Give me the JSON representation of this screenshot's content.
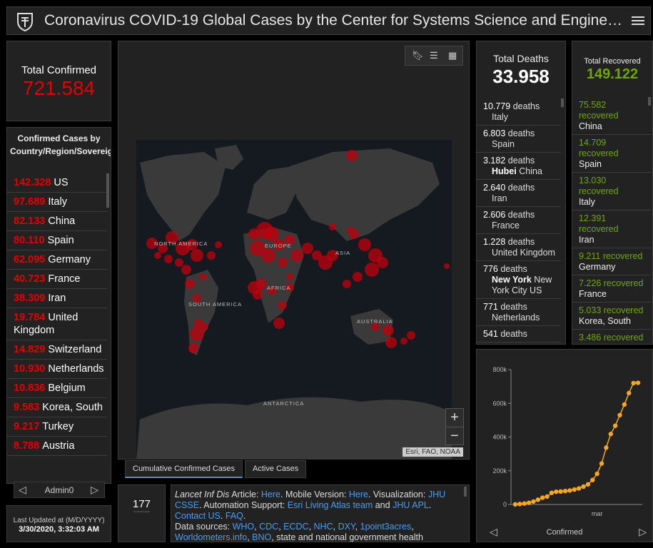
{
  "header": {
    "title": "Coronavirus COVID-19 Global Cases by the Center for Systems Science and Engine…"
  },
  "total_confirmed": {
    "label": "Total Confirmed",
    "value": "721.584"
  },
  "confirmed_list": {
    "title": "Confirmed Cases by Country/Region/Sovereignty",
    "items": [
      {
        "value": "142.328",
        "name": "US"
      },
      {
        "value": "97.689",
        "name": "Italy"
      },
      {
        "value": "82.133",
        "name": "China"
      },
      {
        "value": "80.110",
        "name": "Spain"
      },
      {
        "value": "62.095",
        "name": "Germany"
      },
      {
        "value": "40.723",
        "name": "France"
      },
      {
        "value": "38.309",
        "name": "Iran"
      },
      {
        "value": "19.784",
        "name": "United Kingdom"
      },
      {
        "value": "14.829",
        "name": "Switzerland"
      },
      {
        "value": "10.930",
        "name": "Netherlands"
      },
      {
        "value": "10.836",
        "name": "Belgium"
      },
      {
        "value": "9.583",
        "name": "Korea, South"
      },
      {
        "value": "9.217",
        "name": "Turkey"
      },
      {
        "value": "8.788",
        "name": "Austria"
      }
    ],
    "pager_label": "Admin0"
  },
  "last_updated": {
    "label": "Last Updated at (M/D/YYYY)",
    "value": "3/30/2020, 3:32:03 AM"
  },
  "map": {
    "labels": [
      "NORTH AMERICA",
      "EUROPE",
      "ASIA",
      "AFRICA",
      "SOUTH AMERICA",
      "AUSTRALIA",
      "ANTARCTICA"
    ],
    "attribution": "Esri, FAO, NOAA",
    "zoom_in": "+",
    "zoom_out": "−"
  },
  "map_tabs": [
    {
      "label": "Cumulative Confirmed Cases",
      "active": true
    },
    {
      "label": "Active Cases",
      "active": false
    }
  ],
  "countries_count": {
    "value": "177",
    "sub": "countries/regions"
  },
  "info": {
    "a1": "Lancet Inf Dis",
    "a2": " Article: ",
    "l_here1": "Here",
    "a3": ". Mobile Version: ",
    "l_here2": "Here",
    "a4": ". Visualization: ",
    "l_jhu": "JHU CSSE",
    "a5": ". Automation Support: ",
    "l_esri": "Esri Living Atlas team",
    "a6": " and ",
    "l_jhuapl": "JHU APL",
    "a7": ". ",
    "l_contact": "Contact US",
    "a8": ". ",
    "l_faq": "FAQ",
    "a9": ".",
    "a10": "Data sources: ",
    "l_who": "WHO",
    "l_cdc": "CDC",
    "l_ecdc": "ECDC",
    "l_nhc": "NHC",
    "l_dxy": "DXY",
    "l_1p3a": "1point3acres",
    "l_wom": "Worldometers.info",
    "l_bno": "BNO",
    "a11": ", state and national government health",
    "sep": ", "
  },
  "deaths": {
    "label": "Total Deaths",
    "value": "33.958",
    "items": [
      {
        "num": "10.779",
        "unit": "deaths",
        "place": "Italy",
        "bold": ""
      },
      {
        "num": "6.803",
        "unit": "deaths",
        "place": "Spain",
        "bold": ""
      },
      {
        "num": "3.182",
        "unit": "deaths",
        "place": "China",
        "bold": "Hubei"
      },
      {
        "num": "2.640",
        "unit": "deaths",
        "place": "Iran",
        "bold": ""
      },
      {
        "num": "2.606",
        "unit": "deaths",
        "place": "France",
        "bold": ""
      },
      {
        "num": "1.228",
        "unit": "deaths",
        "place": "United Kingdom",
        "bold": ""
      },
      {
        "num": "776",
        "unit": "deaths",
        "place": "New York City",
        "bold": "New York",
        "tail": "US"
      },
      {
        "num": "771",
        "unit": "deaths",
        "place": "Netherlands",
        "bold": ""
      },
      {
        "num": "541",
        "unit": "deaths",
        "place": "",
        "bold": ""
      }
    ]
  },
  "recovered": {
    "label": "Total Recovered",
    "value": "149.122",
    "items": [
      {
        "num": "75.582",
        "unit": "recovered",
        "place": "China"
      },
      {
        "num": "14.709",
        "unit": "recovered",
        "place": "Spain"
      },
      {
        "num": "13.030",
        "unit": "recovered",
        "place": "Italy"
      },
      {
        "num": "12.391",
        "unit": "recovered",
        "place": "Iran"
      },
      {
        "num": "9.211",
        "unit": "recovered",
        "place": "Germany"
      },
      {
        "num": "7.226",
        "unit": "recovered",
        "place": "France"
      },
      {
        "num": "5.033",
        "unit": "recovered",
        "place": "Korea, South"
      },
      {
        "num": "3.486",
        "unit": "recovered",
        "place": ""
      }
    ]
  },
  "chart": {
    "footer_label": "Confirmed",
    "accent": "#f5a623"
  },
  "chart_data": {
    "type": "line",
    "title": "",
    "xlabel": "",
    "ylabel": "",
    "x_tick_labels": [
      "mar"
    ],
    "y_tick_labels": [
      "0",
      "200k",
      "400k",
      "600k",
      "800k"
    ],
    "ylim": [
      0,
      800000
    ],
    "x": [
      "1/22",
      "1/25",
      "1/28",
      "1/31",
      "2/3",
      "2/6",
      "2/9",
      "2/12",
      "2/15",
      "2/18",
      "2/21",
      "2/24",
      "2/27",
      "3/1",
      "3/4",
      "3/7",
      "3/10",
      "3/13",
      "3/16",
      "3/19",
      "3/22",
      "3/24",
      "3/25",
      "3/26",
      "3/27",
      "3/28",
      "3/29",
      "3/30"
    ],
    "series": [
      {
        "values": [
          555,
          2900,
          5600,
          10000,
          17400,
          28300,
          40200,
          47000,
          69000,
          75600,
          77000,
          79600,
          83000,
          88400,
          95100,
          105800,
          119000,
          145000,
          182000,
          243000,
          337000,
          418000,
          467000,
          530000,
          593000,
          661000,
          720000,
          721584
        ]
      }
    ]
  }
}
